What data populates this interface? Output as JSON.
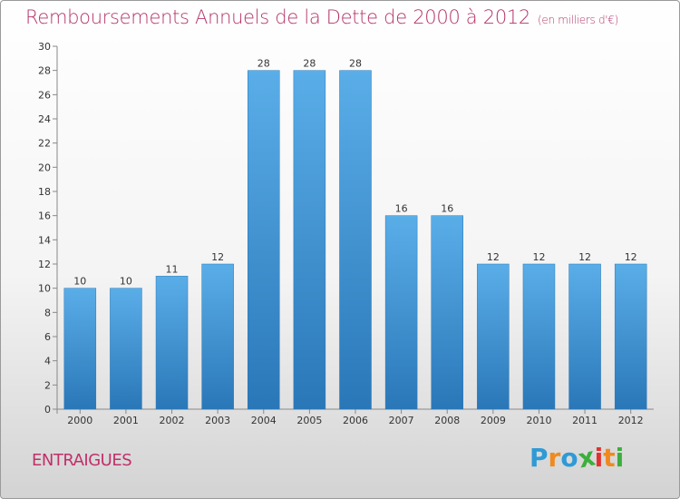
{
  "title": "Remboursements Annuels de la Dette de 2000 à 2012",
  "subtitle": "(en milliers d'€)",
  "commune": "ENTRAIGUES",
  "logo": {
    "text": "Proxiti",
    "colors": [
      "#2f9ad6",
      "#f08a1e",
      "#2f9ad6",
      "#3cae3c",
      "#e3312f",
      "#f08a1e",
      "#3cae3c"
    ]
  },
  "colors": {
    "bar_top": "#5aaee8",
    "bar_bottom": "#2a77b8",
    "title": "#b4356a"
  },
  "chart_data": {
    "type": "bar",
    "categories": [
      "2000",
      "2001",
      "2002",
      "2003",
      "2004",
      "2005",
      "2006",
      "2007",
      "2008",
      "2009",
      "2010",
      "2011",
      "2012"
    ],
    "values": [
      10,
      10,
      11,
      12,
      28,
      28,
      28,
      16,
      16,
      12,
      12,
      12,
      12
    ],
    "ylim": [
      0,
      30
    ],
    "yticks": [
      0,
      2,
      4,
      6,
      8,
      10,
      12,
      14,
      16,
      18,
      20,
      22,
      24,
      26,
      28,
      30
    ],
    "grid": false,
    "data_labels": true
  }
}
